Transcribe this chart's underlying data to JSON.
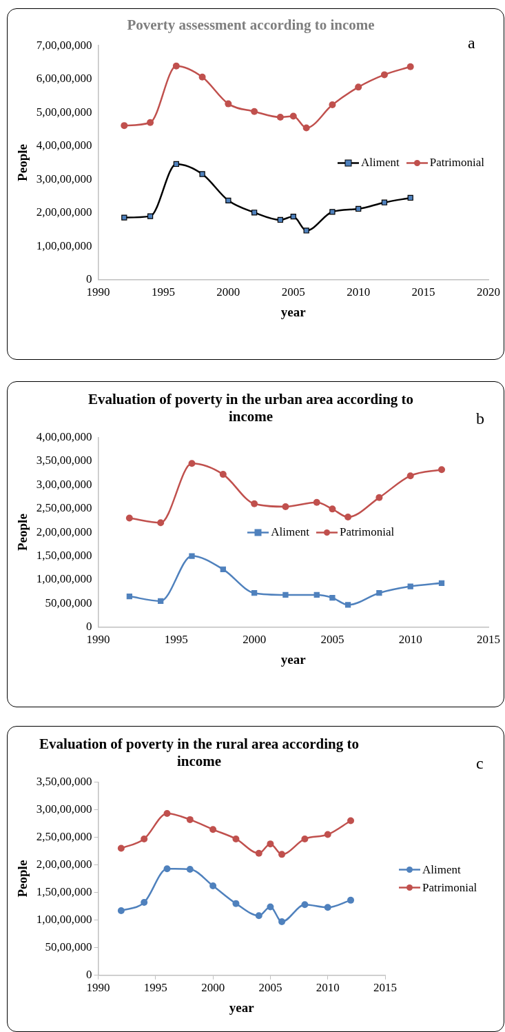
{
  "chart_data": [
    {
      "type": "line",
      "title": "Poverty assessment according to income",
      "xlabel": "year",
      "ylabel": "People",
      "annotations": [
        "a"
      ],
      "x": [
        1992,
        1994,
        1996,
        1998,
        2000,
        2002,
        2004,
        2005,
        2006,
        2008,
        2010,
        2012,
        2014
      ],
      "series": [
        {
          "name": "Aliment",
          "color": "#000000",
          "marker": "square",
          "values": [
            18600000,
            19000000,
            34600000,
            31600000,
            23700000,
            20100000,
            17900000,
            18900000,
            14700000,
            20300000,
            21200000,
            23100000,
            24500000
          ]
        },
        {
          "name": "Patrimonial",
          "color": "#c0504d",
          "marker": "circle",
          "values": [
            46100000,
            47000000,
            63900000,
            60600000,
            52600000,
            50300000,
            48600000,
            48900000,
            45400000,
            52300000,
            57600000,
            61300000,
            63700000
          ]
        }
      ],
      "xlim": [
        1990,
        2020
      ],
      "xticks": [
        1990,
        1995,
        2000,
        2005,
        2010,
        2015,
        2020
      ],
      "ylim": [
        0,
        70000000
      ],
      "yticks": [
        {
          "value": 0,
          "label": "0"
        },
        {
          "value": 10000000,
          "label": "1,00,00,000"
        },
        {
          "value": 20000000,
          "label": "2,00,00,000"
        },
        {
          "value": 30000000,
          "label": "3,00,00,000"
        },
        {
          "value": 40000000,
          "label": "4,00,00,000"
        },
        {
          "value": 50000000,
          "label": "5,00,00,000"
        },
        {
          "value": 60000000,
          "label": "6,00,00,000"
        },
        {
          "value": 70000000,
          "label": "7,00,00,000"
        }
      ],
      "grid": false,
      "legend": "right"
    },
    {
      "type": "line",
      "title": "Evaluation of poverty in the urban area according to income",
      "xlabel": "year",
      "ylabel": "People",
      "annotations": [
        "b"
      ],
      "x": [
        1992,
        1994,
        1996,
        1998,
        2000,
        2002,
        2004,
        2005,
        2006,
        2008,
        2010,
        2012
      ],
      "series": [
        {
          "name": "Aliment",
          "color": "#4f81bd",
          "marker": "square",
          "values": [
            6500000,
            5500000,
            15000000,
            12200000,
            7200000,
            6800000,
            6800000,
            6200000,
            4700000,
            7200000,
            8600000,
            9300000
          ]
        },
        {
          "name": "Patrimonial",
          "color": "#c0504d",
          "marker": "circle",
          "values": [
            23000000,
            22000000,
            34500000,
            32200000,
            26000000,
            25400000,
            26300000,
            24900000,
            23200000,
            27300000,
            31900000,
            33200000
          ]
        }
      ],
      "xlim": [
        1990,
        2015
      ],
      "xticks": [
        1990,
        1995,
        2000,
        2005,
        2010,
        2015
      ],
      "ylim": [
        0,
        40000000
      ],
      "yticks": [
        {
          "value": 0,
          "label": "0"
        },
        {
          "value": 5000000,
          "label": "50,00,000"
        },
        {
          "value": 10000000,
          "label": "1,00,00,000"
        },
        {
          "value": 15000000,
          "label": "1,50,00,000"
        },
        {
          "value": 20000000,
          "label": "2,00,00,000"
        },
        {
          "value": 25000000,
          "label": "2,50,00,000"
        },
        {
          "value": 30000000,
          "label": "3,00,00,000"
        },
        {
          "value": 35000000,
          "label": "3,50,00,000"
        },
        {
          "value": 40000000,
          "label": "4,00,00,000"
        }
      ],
      "grid": false,
      "legend": "center"
    },
    {
      "type": "line",
      "title": "Evaluation of poverty in the rural area according to income",
      "xlabel": "year",
      "ylabel": "People",
      "annotations": [
        "c"
      ],
      "x": [
        1992,
        1994,
        1996,
        1998,
        2000,
        2002,
        2004,
        2005,
        2006,
        2008,
        2010,
        2012
      ],
      "series": [
        {
          "name": "Aliment",
          "color": "#4f81bd",
          "marker": "circle",
          "values": [
            11700000,
            13200000,
            19300000,
            19200000,
            16200000,
            13000000,
            10800000,
            12400000,
            9700000,
            12800000,
            12300000,
            13600000
          ]
        },
        {
          "name": "Patrimonial",
          "color": "#c0504d",
          "marker": "circle",
          "values": [
            23000000,
            24700000,
            29300000,
            28200000,
            26400000,
            24700000,
            22100000,
            23800000,
            21900000,
            24700000,
            25500000,
            28000000
          ]
        }
      ],
      "xlim": [
        1990,
        2015
      ],
      "xticks": [
        1990,
        1995,
        2000,
        2005,
        2010,
        2015
      ],
      "ylim": [
        0,
        35000000
      ],
      "yticks": [
        {
          "value": 0,
          "label": "0"
        },
        {
          "value": 5000000,
          "label": "50,00,000"
        },
        {
          "value": 10000000,
          "label": "1,00,00,000"
        },
        {
          "value": 15000000,
          "label": "1,50,00,000"
        },
        {
          "value": 20000000,
          "label": "2,00,00,000"
        },
        {
          "value": 25000000,
          "label": "2,50,00,000"
        },
        {
          "value": 30000000,
          "label": "3,00,00,000"
        },
        {
          "value": 35000000,
          "label": "3,50,00,000"
        }
      ],
      "grid": false,
      "legend": "right"
    }
  ]
}
